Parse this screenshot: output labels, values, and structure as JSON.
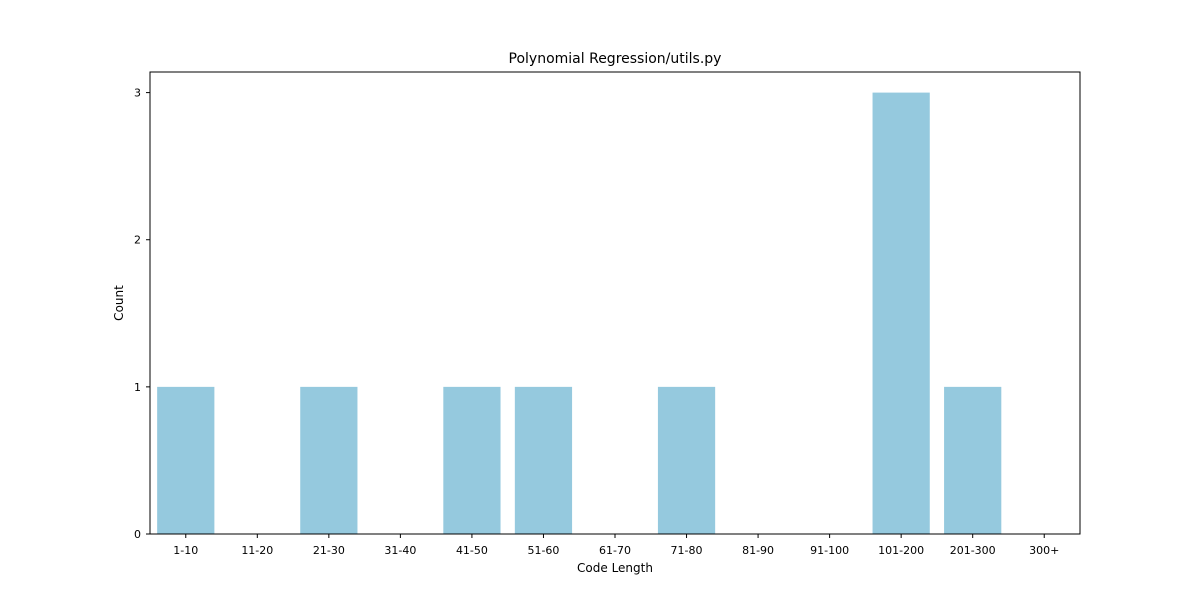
{
  "chart_data": {
    "type": "bar",
    "title": "Polynomial Regression/utils.py",
    "xlabel": "Code Length",
    "ylabel": "Count",
    "categories": [
      "1-10",
      "11-20",
      "21-30",
      "31-40",
      "41-50",
      "51-60",
      "61-70",
      "71-80",
      "81-90",
      "91-100",
      "101-200",
      "201-300",
      "300+"
    ],
    "values": [
      1,
      0,
      1,
      0,
      1,
      1,
      0,
      1,
      0,
      0,
      3,
      1,
      0
    ],
    "ylim": [
      0,
      3.14
    ],
    "yticks": [
      0,
      1,
      2,
      3
    ],
    "grid": false,
    "legend": "none",
    "bar_color": "#95c9de",
    "axis_color": "#000000"
  }
}
